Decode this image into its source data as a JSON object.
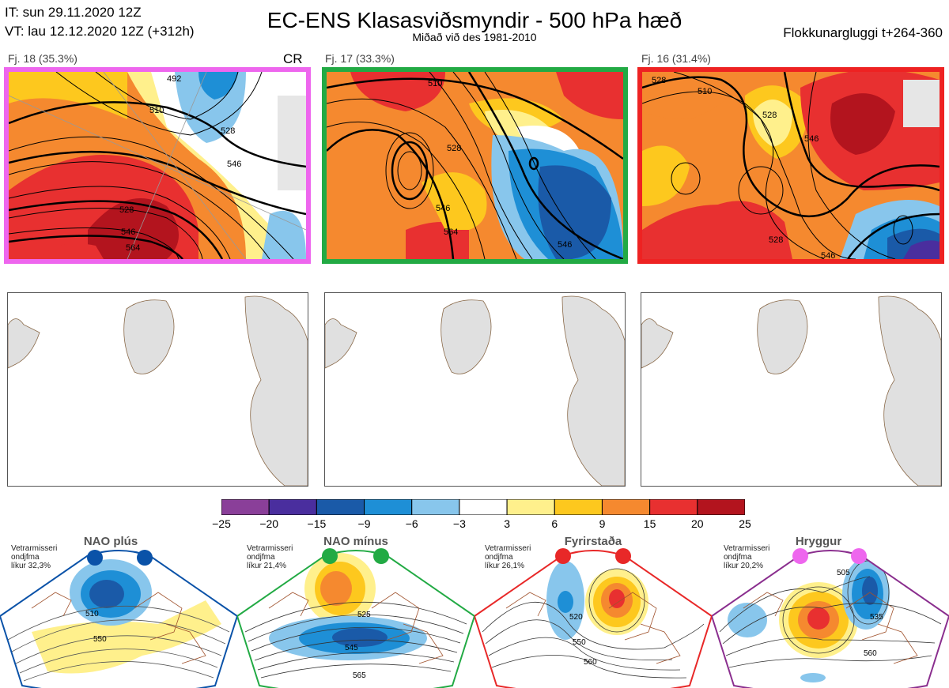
{
  "header": {
    "it_line": "IT: sun 29.11.2020 12Z",
    "vt_line": "VT: lau 12.12.2020 12Z  (+312h)",
    "title": "EC-ENS Klasasviðsmyndir - 500 hPa hæð",
    "subtitle": "Miðað við des 1981-2010",
    "window": "Flokkunargluggi t+264-360"
  },
  "clusters": [
    {
      "label": "Fj. 18 (35.3%)",
      "tag": "CR",
      "border_color": "#ee66ee",
      "contour_labels": [
        "492",
        "510",
        "528",
        "546",
        "528",
        "546",
        "564"
      ]
    },
    {
      "label": "Fj. 17 (33.3%)",
      "tag": "",
      "border_color": "#22aa44",
      "contour_labels": [
        "510",
        "528",
        "546",
        "564",
        "546"
      ]
    },
    {
      "label": "Fj. 16 (31.4%)",
      "tag": "",
      "border_color": "#ee2222",
      "contour_labels": [
        "528",
        "510",
        "528",
        "546",
        "528",
        "546"
      ]
    }
  ],
  "colorbar": {
    "ticks": [
      "−25",
      "−20",
      "−15",
      "−9",
      "−6",
      "−3",
      "3",
      "6",
      "9",
      "15",
      "20",
      "25"
    ],
    "colors": [
      "#8a3f99",
      "#4a2e9e",
      "#1a5aa8",
      "#1e8fd6",
      "#88c6ec",
      "#ffffff",
      "#fff08c",
      "#fdc81e",
      "#f5892f",
      "#e83030",
      "#b3141e"
    ]
  },
  "regimes": [
    {
      "name": "NAO plús",
      "note": [
        "Vetrarmisseri",
        "ondjfma",
        "líkur 32,3%"
      ],
      "color": "#0a52a8",
      "contour_labels": [
        "510",
        "550"
      ]
    },
    {
      "name": "NAO mínus",
      "note": [
        "Vetrarmisseri",
        "ondjfma",
        "líkur 21,4%"
      ],
      "color": "#22aa44",
      "contour_labels": [
        "525",
        "545",
        "565"
      ]
    },
    {
      "name": "Fyrirstaða",
      "note": [
        "Vetrarmisseri",
        "ondjfma",
        "líkur 26,1%"
      ],
      "color": "#e82828",
      "contour_labels": [
        "520",
        "550",
        "560"
      ]
    },
    {
      "name": "Hryggur",
      "note": [
        "Vetrarmisseri",
        "ondjfma",
        "líkur 20,2%"
      ],
      "color": "#ee66ee",
      "contour_labels": [
        "505",
        "535",
        "560"
      ]
    }
  ]
}
